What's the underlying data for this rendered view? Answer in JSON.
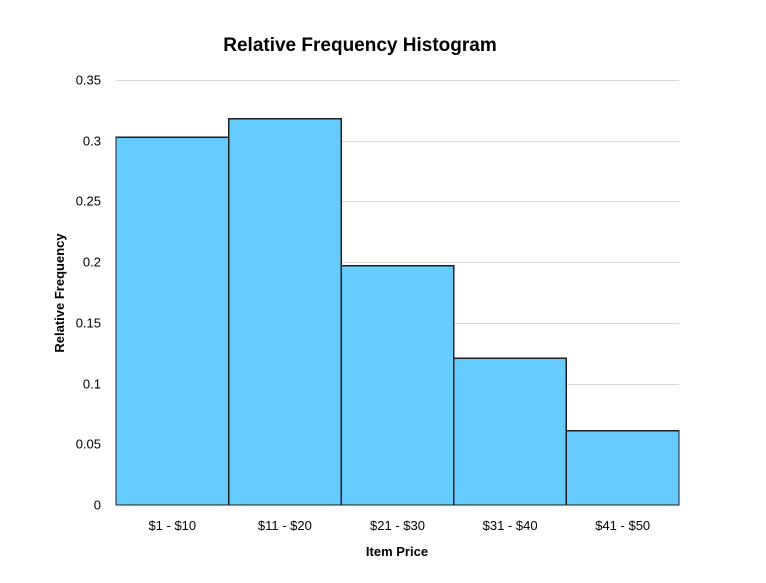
{
  "chart_data": {
    "type": "bar",
    "title": "Relative Frequency Histogram",
    "xlabel": "Item Price",
    "ylabel": "Relative Frequency",
    "categories": [
      "$1 - $10",
      "$11 - $20",
      "$21 - $30",
      "$31 - $40",
      "$41 - $50"
    ],
    "values": [
      0.303,
      0.318,
      0.197,
      0.121,
      0.061
    ],
    "ylim": [
      0,
      0.35
    ],
    "yticks": [
      0,
      0.05,
      0.1,
      0.15,
      0.2,
      0.25,
      0.3,
      0.35
    ],
    "ytick_labels": [
      "0",
      "0.05",
      "0.1",
      "0.15",
      "0.2",
      "0.25",
      "0.3",
      "0.35"
    ],
    "grid": true,
    "bar_color": "#66ccff",
    "bar_edge_color": "#1f1f1f"
  }
}
